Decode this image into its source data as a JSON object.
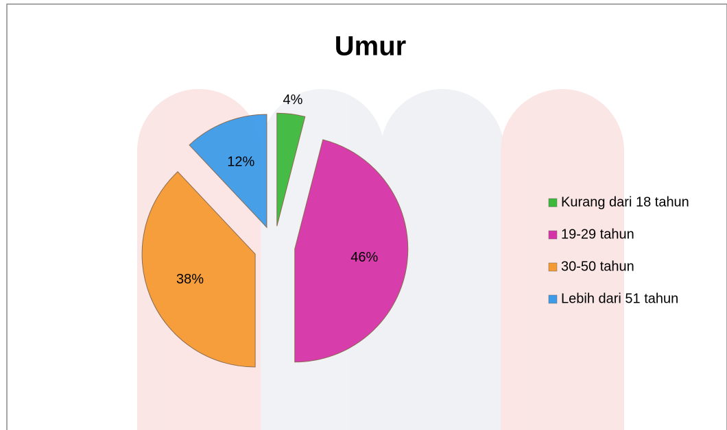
{
  "chart_data": {
    "type": "pie",
    "title": "Umur",
    "categories": [
      "Kurang dari 18 tahun",
      "19-29 tahun",
      "30-50 tahun",
      "Lebih dari 51 tahun"
    ],
    "values": [
      4,
      46,
      38,
      12
    ],
    "value_labels": [
      "4%",
      "46%",
      "38%",
      "12%"
    ],
    "colors": [
      "#3cb83c",
      "#d633a8",
      "#f59a33",
      "#3d9be8"
    ],
    "legend": "right"
  }
}
